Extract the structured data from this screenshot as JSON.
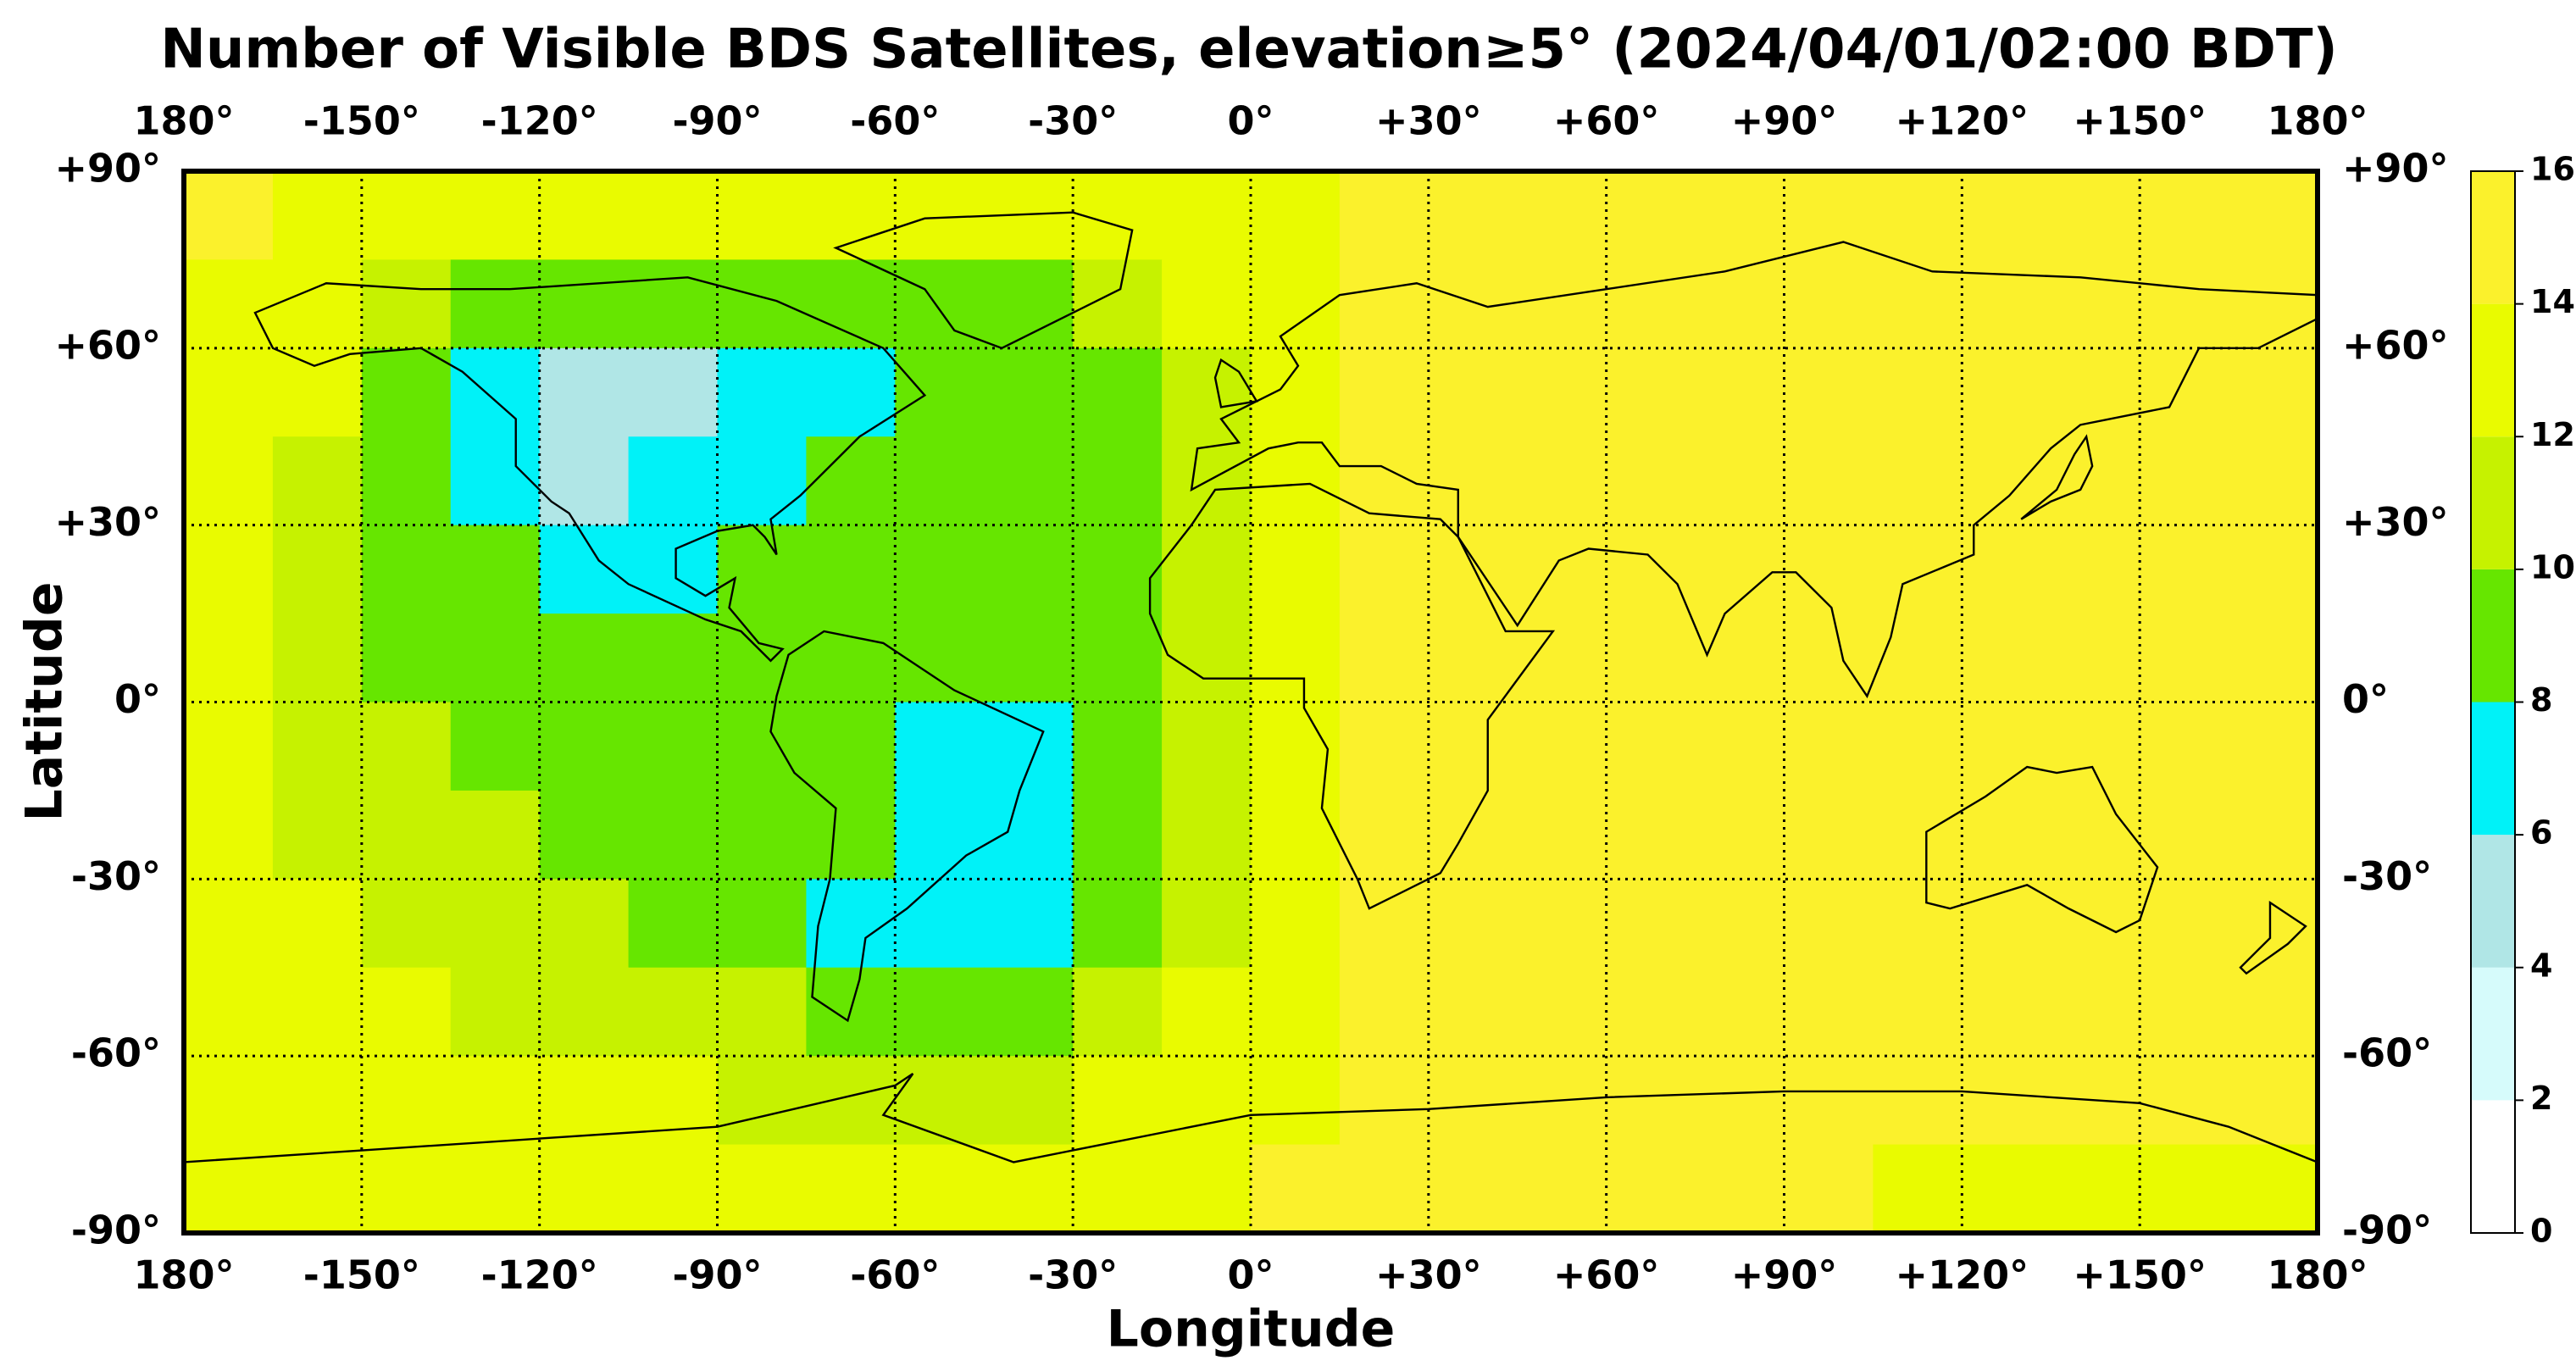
{
  "chart_data": {
    "type": "heatmap",
    "title": "Number of Visible BDS Satellites, elevation≥5° (2024/04/01/02:00 BDT)",
    "xlabel": "Longitude",
    "ylabel": "Latitude",
    "x": [
      -172.5,
      -157.5,
      -142.5,
      -127.5,
      -112.5,
      -97.5,
      -82.5,
      -67.5,
      -52.5,
      -37.5,
      -22.5,
      -7.5,
      7.5,
      22.5,
      37.5,
      52.5,
      67.5,
      82.5,
      97.5,
      112.5,
      127.5,
      142.5,
      157.5,
      172.5
    ],
    "y": [
      82.5,
      67.5,
      52.5,
      37.5,
      22.5,
      7.5,
      -7.5,
      -22.5,
      -37.5,
      -52.5,
      -67.5,
      -82.5
    ],
    "z": [
      [
        15,
        13,
        13,
        13,
        13,
        13,
        13,
        13,
        13,
        13,
        13,
        13,
        13,
        15,
        15,
        15,
        15,
        15,
        15,
        15,
        15,
        15,
        15,
        15
      ],
      [
        13,
        13,
        11,
        9,
        9,
        9,
        9,
        9,
        9,
        9,
        11,
        13,
        13,
        15,
        15,
        15,
        15,
        15,
        15,
        15,
        15,
        15,
        15,
        15
      ],
      [
        13,
        12,
        9,
        7,
        5,
        5,
        7,
        7,
        9,
        9,
        9,
        11,
        13,
        15,
        15,
        15,
        15,
        15,
        15,
        15,
        15,
        15,
        15,
        15
      ],
      [
        13,
        11,
        9,
        7,
        5,
        7,
        7,
        9,
        9,
        9,
        9,
        11,
        13,
        15,
        15,
        15,
        15,
        15,
        15,
        15,
        15,
        15,
        15,
        15
      ],
      [
        13,
        11,
        9,
        9,
        7,
        7,
        9,
        9,
        9,
        9,
        9,
        11,
        13,
        15,
        15,
        15,
        15,
        15,
        15,
        15,
        15,
        15,
        15,
        15
      ],
      [
        13,
        11,
        9,
        9,
        9,
        9,
        9,
        9,
        9,
        9,
        9,
        11,
        13,
        15,
        15,
        15,
        15,
        15,
        15,
        15,
        15,
        15,
        15,
        15
      ],
      [
        13,
        11,
        11,
        9,
        9,
        9,
        9,
        9,
        7,
        7,
        9,
        11,
        13,
        15,
        15,
        15,
        15,
        15,
        15,
        15,
        15,
        15,
        15,
        15
      ],
      [
        13,
        11,
        11,
        11,
        9,
        9,
        9,
        9,
        7,
        7,
        9,
        11,
        13,
        15,
        15,
        15,
        15,
        15,
        15,
        15,
        15,
        15,
        15,
        15
      ],
      [
        13,
        13,
        11,
        11,
        11,
        9,
        9,
        7,
        7,
        7,
        9,
        11,
        13,
        15,
        15,
        15,
        15,
        15,
        15,
        15,
        15,
        15,
        15,
        15
      ],
      [
        13,
        13,
        13,
        11,
        11,
        11,
        11,
        9,
        9,
        9,
        11,
        13,
        13,
        15,
        15,
        15,
        15,
        15,
        15,
        15,
        15,
        15,
        15,
        15
      ],
      [
        13,
        13,
        13,
        13,
        13,
        13,
        11,
        11,
        11,
        11,
        13,
        13,
        13,
        15,
        15,
        15,
        15,
        15,
        15,
        15,
        15,
        15,
        15,
        15
      ],
      [
        13,
        13,
        13,
        13,
        13,
        13,
        13,
        13,
        13,
        13,
        13,
        13,
        15,
        15,
        15,
        15,
        15,
        15,
        15,
        13,
        13,
        13,
        13,
        13
      ]
    ],
    "xlim": [
      -180,
      180
    ],
    "ylim": [
      -90,
      90
    ],
    "xticks": [
      {
        "value": -180,
        "label": "180°"
      },
      {
        "value": -150,
        "label": "-150°"
      },
      {
        "value": -120,
        "label": "-120°"
      },
      {
        "value": -90,
        "label": "-90°"
      },
      {
        "value": -60,
        "label": "-60°"
      },
      {
        "value": -30,
        "label": "-30°"
      },
      {
        "value": 0,
        "label": "0°"
      },
      {
        "value": 30,
        "label": "+30°"
      },
      {
        "value": 60,
        "label": "+60°"
      },
      {
        "value": 90,
        "label": "+90°"
      },
      {
        "value": 120,
        "label": "+120°"
      },
      {
        "value": 150,
        "label": "+150°"
      },
      {
        "value": 180,
        "label": "180°"
      }
    ],
    "yticks": [
      {
        "value": 90,
        "label": "+90°"
      },
      {
        "value": 60,
        "label": "+60°"
      },
      {
        "value": 30,
        "label": "+30°"
      },
      {
        "value": 0,
        "label": "0°"
      },
      {
        "value": -30,
        "label": "-30°"
      },
      {
        "value": -60,
        "label": "-60°"
      },
      {
        "value": -90,
        "label": "-90°"
      }
    ],
    "grid": true,
    "colorbar": {
      "levels": [
        0,
        2,
        4,
        6,
        8,
        10,
        12,
        14,
        16
      ],
      "colors": [
        "#ffffff",
        "#d6fbfb",
        "#b0e6e6",
        "#00f2f8",
        "#66e600",
        "#c6f200",
        "#e9fb00",
        "#fbf12c"
      ]
    }
  }
}
